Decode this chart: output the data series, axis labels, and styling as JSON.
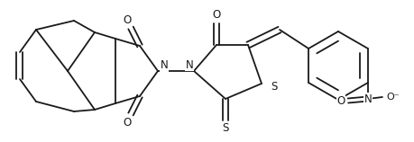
{
  "bg_color": "#ffffff",
  "line_color": "#1a1a1a",
  "line_width": 1.3,
  "font_size": 8.5,
  "figsize": [
    4.6,
    1.58
  ],
  "dpi": 100,
  "xlim": [
    0,
    460
  ],
  "ylim": [
    0,
    158
  ]
}
